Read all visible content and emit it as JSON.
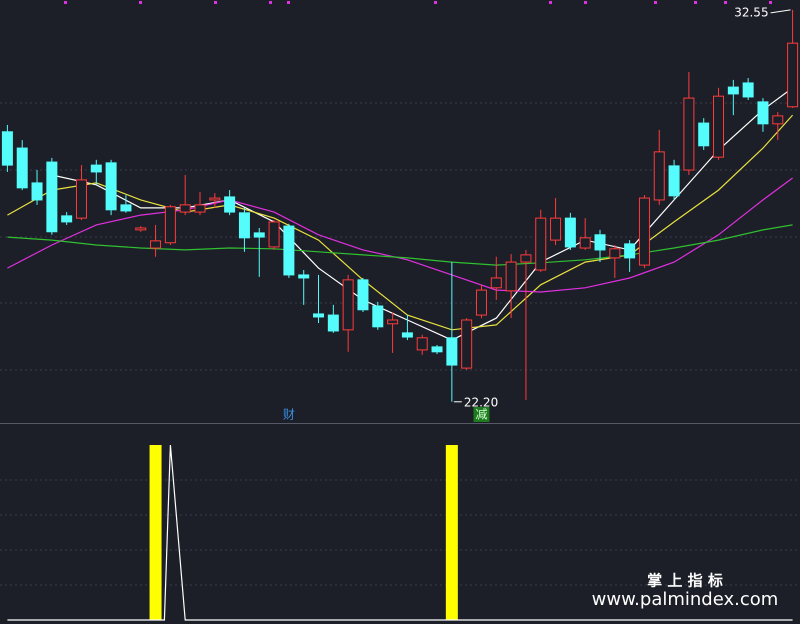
{
  "chart_data": [
    {
      "type": "candlestick",
      "xlim": [
        -0.5,
        53.5
      ],
      "ylim": [
        21.64,
        32.81
      ],
      "up_color": "#ff3b3b",
      "down_color": "#54fcfc",
      "open": [
        29.33,
        28.9,
        27.98,
        28.53,
        27.11,
        27.05,
        28.45,
        28.51,
        27.4,
        26.74,
        26.26,
        26.4,
        27.21,
        27.21,
        27.53,
        27.61,
        27.19,
        26.66,
        26.29,
        26.84,
        25.55,
        24.52,
        24.49,
        24.1,
        25.42,
        24.73,
        24.26,
        24.02,
        23.57,
        23.65,
        23.89,
        23.09,
        24.49,
        25.21,
        25.13,
        25.89,
        25.68,
        26.47,
        27.05,
        26.26,
        26.61,
        26.0,
        26.37,
        25.81,
        27.53,
        28.43,
        28.32,
        29.56,
        28.66,
        30.51,
        30.62,
        30.12,
        29.54,
        29.99
      ],
      "high": [
        29.51,
        29.11,
        28.32,
        28.64,
        27.21,
        28.45,
        28.59,
        28.59,
        27.66,
        26.84,
        26.87,
        27.4,
        28.19,
        27.74,
        27.71,
        27.79,
        27.32,
        26.79,
        27.0,
        26.9,
        25.68,
        25.55,
        24.76,
        25.55,
        25.47,
        24.84,
        24.57,
        24.49,
        23.97,
        23.7,
        25.89,
        24.41,
        25.29,
        26.03,
        26.1,
        26.21,
        27.27,
        27.58,
        27.19,
        27.05,
        26.74,
        26.34,
        26.47,
        27.66,
        29.38,
        28.59,
        30.91,
        29.69,
        30.49,
        30.7,
        30.75,
        30.22,
        29.85,
        32.55
      ],
      "low": [
        28.27,
        27.79,
        27.4,
        26.61,
        26.87,
        27.0,
        27.93,
        27.13,
        27.19,
        26.69,
        26.03,
        26.34,
        27.13,
        27.13,
        27.32,
        27.13,
        26.16,
        25.5,
        26.21,
        25.47,
        24.76,
        24.28,
        24.02,
        23.52,
        24.57,
        24.1,
        23.49,
        23.83,
        23.44,
        23.46,
        22.2,
        23.04,
        24.41,
        24.89,
        24.41,
        22.25,
        25.63,
        26.34,
        26.21,
        26.21,
        25.89,
        25.47,
        25.63,
        25.73,
        27.4,
        27.53,
        28.19,
        28.85,
        28.59,
        29.77,
        30.17,
        29.33,
        29.11,
        29.96
      ],
      "close": [
        28.45,
        27.85,
        27.53,
        26.69,
        26.95,
        28.06,
        28.27,
        27.27,
        27.24,
        26.79,
        26.45,
        27.35,
        27.4,
        27.4,
        27.58,
        27.21,
        26.53,
        26.55,
        26.95,
        25.55,
        25.47,
        24.44,
        24.07,
        25.42,
        24.63,
        24.18,
        24.36,
        23.91,
        23.89,
        23.52,
        23.17,
        24.36,
        25.15,
        25.47,
        25.89,
        26.08,
        27.05,
        27.05,
        26.29,
        26.53,
        26.21,
        26.24,
        26.0,
        27.58,
        28.8,
        27.64,
        30.22,
        28.96,
        30.27,
        30.33,
        30.25,
        29.54,
        29.75,
        31.67
      ],
      "lines": [
        {
          "color": "#ffffff",
          "x": [
            0,
            3,
            6,
            9,
            12,
            15,
            18,
            21,
            24,
            27,
            30,
            33,
            36,
            39,
            42,
            45,
            48,
            51,
            53
          ],
          "values": [
            null,
            28.19,
            27.93,
            27.32,
            27.32,
            27.53,
            26.95,
            25.73,
            24.89,
            24.36,
            23.83,
            24.41,
            25.89,
            26.47,
            26.21,
            27.53,
            28.85,
            29.91,
            30.49
          ]
        },
        {
          "color": "#e8e040",
          "x": [
            0,
            3,
            6,
            9,
            12,
            15,
            18,
            21,
            24,
            27,
            30,
            33,
            36,
            39,
            42,
            45,
            48,
            51,
            53
          ],
          "values": [
            27.13,
            27.79,
            27.98,
            27.53,
            27.21,
            27.4,
            27.05,
            26.47,
            25.42,
            24.49,
            24.1,
            24.23,
            25.29,
            25.89,
            26.08,
            26.95,
            27.79,
            28.9,
            29.77
          ]
        },
        {
          "color": "#e030e0",
          "x": [
            0,
            3,
            6,
            9,
            12,
            15,
            18,
            21,
            24,
            27,
            30,
            33,
            36,
            39,
            42,
            45,
            48,
            51,
            53
          ],
          "values": [
            25.73,
            26.34,
            26.87,
            27.13,
            27.27,
            27.53,
            27.21,
            26.61,
            26.21,
            25.95,
            25.55,
            25.15,
            25.1,
            25.21,
            25.47,
            25.89,
            26.61,
            27.53,
            28.11
          ]
        },
        {
          "color": "#30c030",
          "x": [
            0,
            3,
            6,
            9,
            12,
            15,
            18,
            21,
            24,
            27,
            30,
            33,
            36,
            39,
            42,
            45,
            48,
            51,
            53
          ],
          "values": [
            26.55,
            26.47,
            26.34,
            26.26,
            26.21,
            26.26,
            26.24,
            26.16,
            26.08,
            26.0,
            25.89,
            25.81,
            25.87,
            25.95,
            26.08,
            26.26,
            26.47,
            26.74,
            26.87
          ]
        }
      ],
      "price_labels": [
        {
          "x": 30,
          "value": 22.2,
          "label": "22.20"
        },
        {
          "x": 53,
          "value": 32.55,
          "label": "32.55"
        }
      ],
      "markers": [
        {
          "x": 19,
          "label": "财"
        },
        {
          "x": 32,
          "label": "减"
        }
      ]
    },
    {
      "type": "bar",
      "xlim": [
        -0.5,
        53.5
      ],
      "ylim": [
        0,
        1
      ],
      "color": "#ffff00",
      "x": [
        10,
        30
      ],
      "values": [
        1,
        1
      ],
      "line": {
        "color": "#ffffff",
        "x": [
          0,
          10.6,
          11,
          12,
          53
        ],
        "values": [
          0,
          0,
          1,
          0,
          0
        ]
      }
    }
  ],
  "watermark": {
    "title": "掌 上 指 标",
    "url": "www.palmindex.com"
  }
}
